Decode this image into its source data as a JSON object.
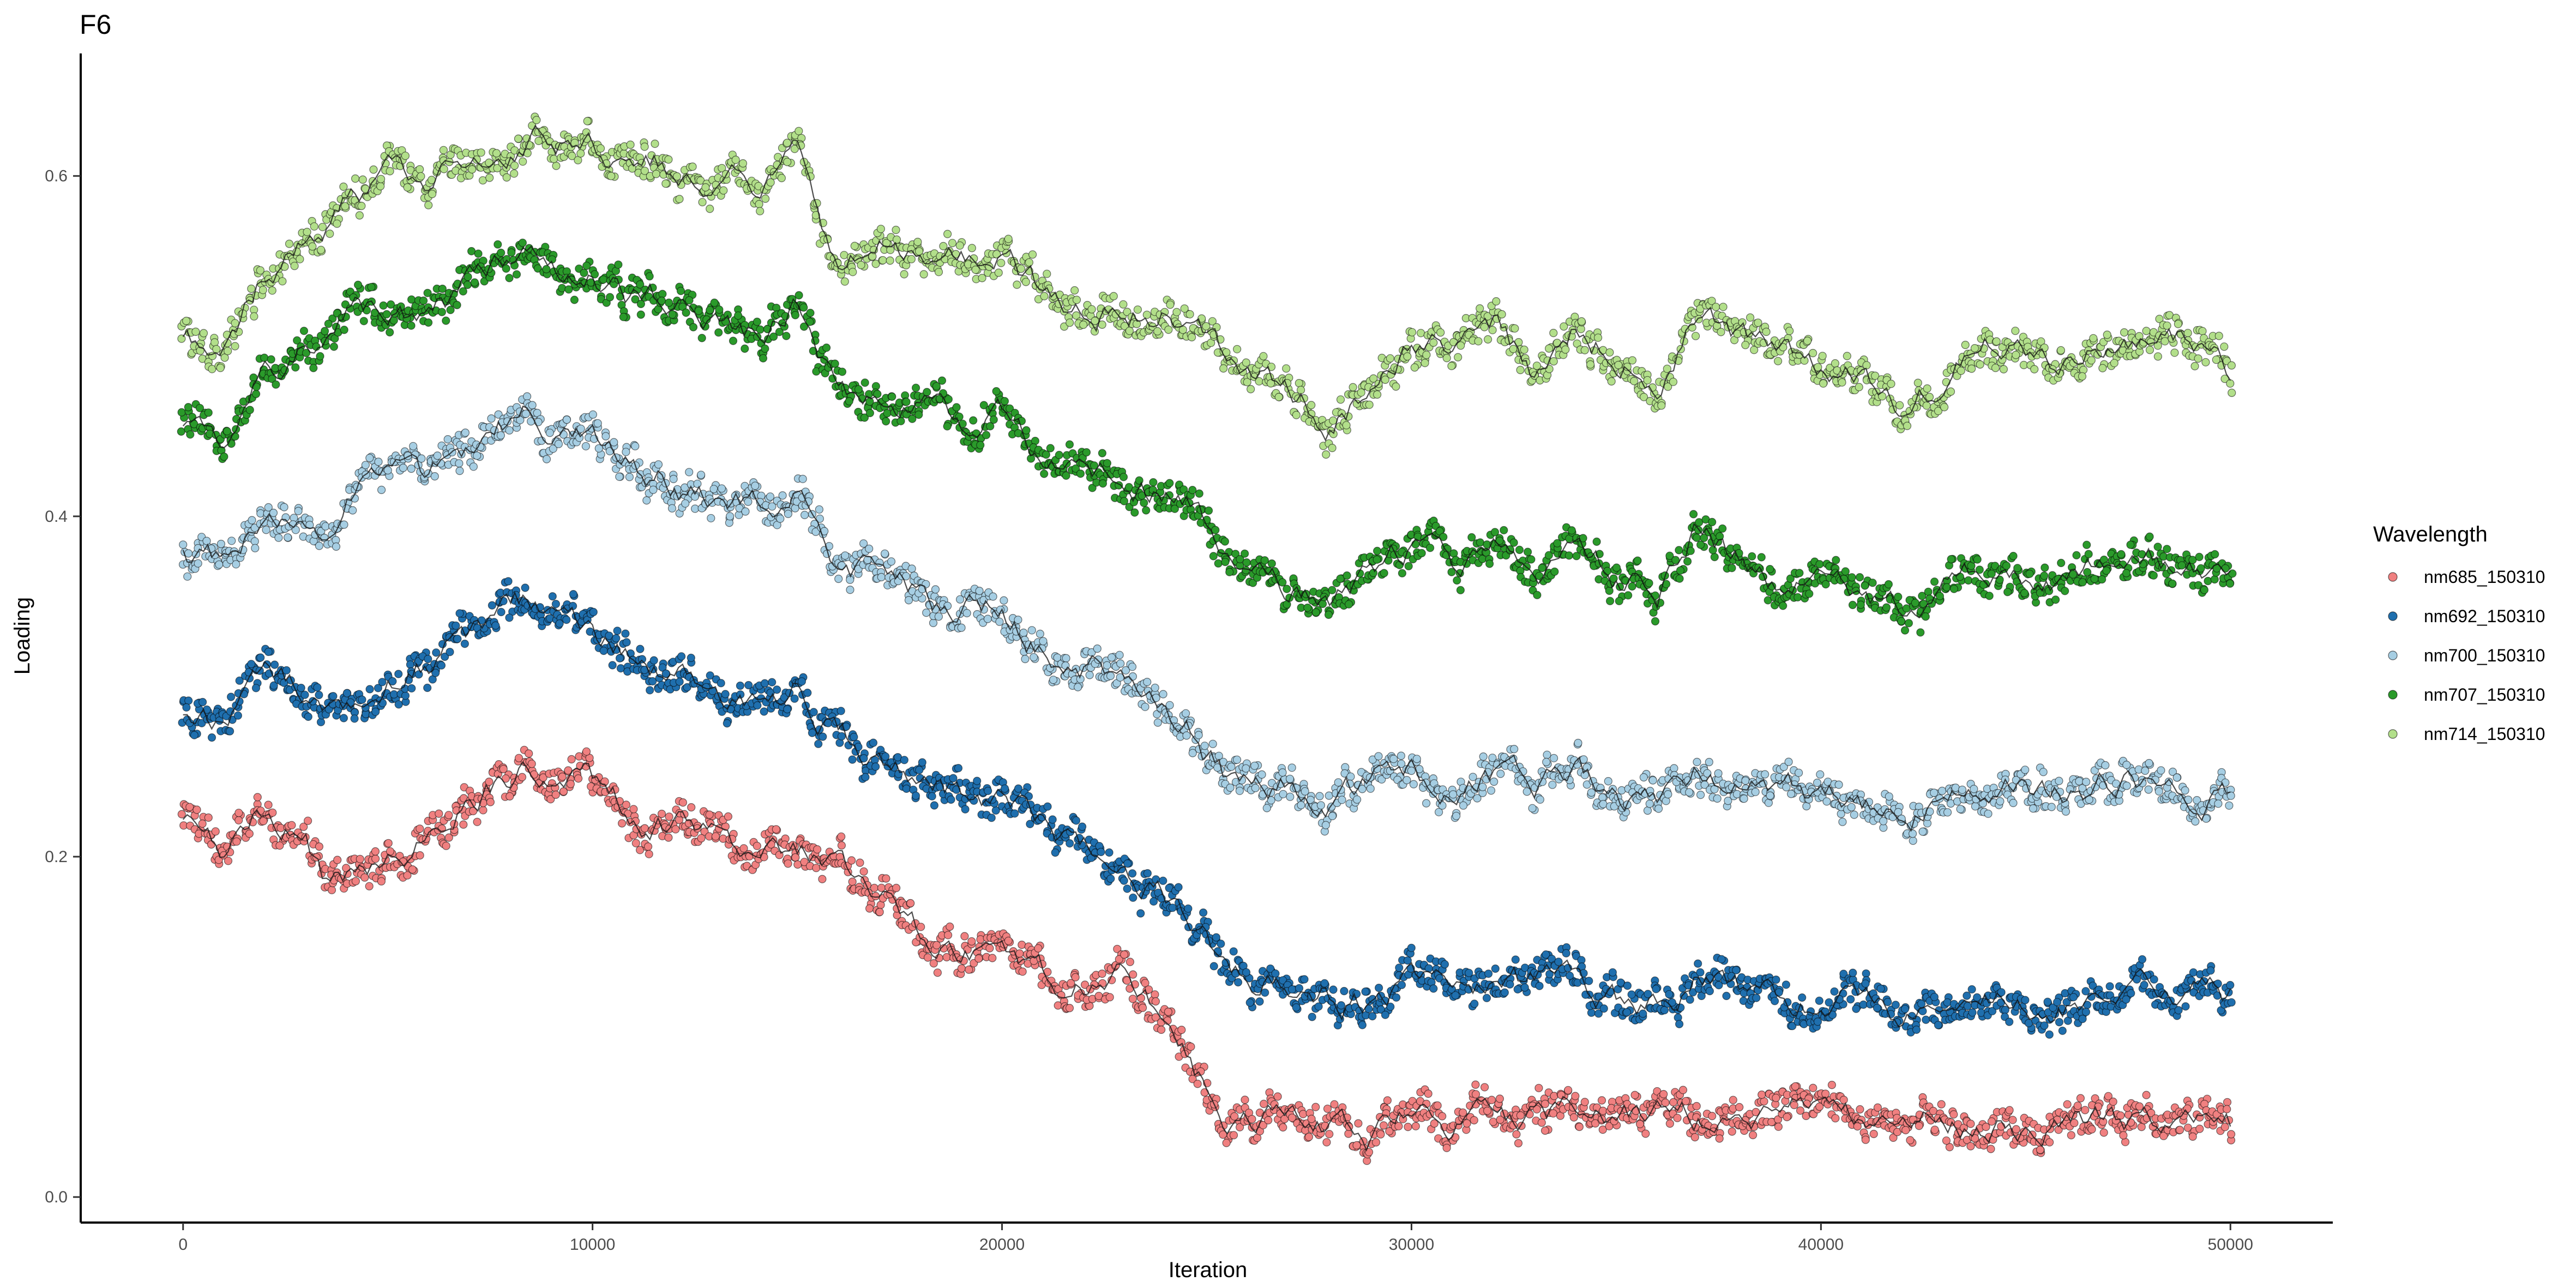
{
  "chart_data": {
    "type": "scatter",
    "title": "F6",
    "xlabel": "Iteration",
    "ylabel": "Loading",
    "xlim": [
      -2500,
      52500
    ],
    "ylim": [
      -0.015,
      0.672
    ],
    "x_ticks": [
      0,
      10000,
      20000,
      30000,
      40000,
      50000
    ],
    "x_tick_labels": [
      "0",
      "10000",
      "20000",
      "30000",
      "40000",
      "50000"
    ],
    "y_ticks": [
      0.0,
      0.2,
      0.4,
      0.6
    ],
    "y_tick_labels": [
      "0.0",
      "0.2",
      "0.4",
      "0.6"
    ],
    "grid": false,
    "legend": {
      "title": "Wavelength",
      "position": "right"
    },
    "point_outline": "#000000",
    "series": [
      {
        "name": "nm685_150310",
        "color": "#F08080",
        "x": [
          0,
          1000,
          2000,
          3000,
          3500,
          4000,
          5000,
          6000,
          7000,
          8000,
          8500,
          9000,
          10000,
          11000,
          12000,
          13000,
          14000,
          15000,
          16000,
          17000,
          18000,
          19000,
          20000,
          21000,
          22000,
          23000,
          24000,
          24500,
          25000,
          25500,
          26000,
          27000,
          28000,
          29000,
          30000,
          31000,
          32000,
          33000,
          34000,
          35000,
          36000,
          37000,
          38000,
          39000,
          40000,
          41000,
          42000,
          43000,
          44000,
          45000,
          46000,
          47000,
          48000,
          49000,
          50000
        ],
        "y": [
          0.22,
          0.205,
          0.225,
          0.21,
          0.185,
          0.19,
          0.205,
          0.215,
          0.235,
          0.25,
          0.255,
          0.24,
          0.24,
          0.225,
          0.22,
          0.21,
          0.2,
          0.205,
          0.19,
          0.175,
          0.155,
          0.145,
          0.14,
          0.13,
          0.125,
          0.135,
          0.1,
          0.09,
          0.065,
          0.05,
          0.045,
          0.05,
          0.045,
          0.035,
          0.045,
          0.04,
          0.045,
          0.045,
          0.05,
          0.04,
          0.045,
          0.045,
          0.04,
          0.04,
          0.05,
          0.045,
          0.035,
          0.045,
          0.04,
          0.04,
          0.045,
          0.045,
          0.04,
          0.045,
          0.04
        ]
      },
      {
        "name": "nm692_150310",
        "color": "#1F6FAE",
        "x": [
          0,
          1000,
          2000,
          3000,
          3500,
          4000,
          5000,
          6000,
          7000,
          8000,
          8500,
          9000,
          10000,
          11000,
          12000,
          13000,
          14000,
          15000,
          16000,
          17000,
          18000,
          19000,
          20000,
          21000,
          22000,
          23000,
          24000,
          24500,
          25000,
          25500,
          26000,
          27000,
          28000,
          29000,
          30000,
          31000,
          32000,
          33000,
          34000,
          35000,
          36000,
          37000,
          38000,
          39000,
          40000,
          41000,
          42000,
          43000,
          44000,
          45000,
          46000,
          47000,
          48000,
          49000,
          50000
        ],
        "y": [
          0.285,
          0.28,
          0.31,
          0.295,
          0.285,
          0.29,
          0.305,
          0.315,
          0.33,
          0.345,
          0.35,
          0.335,
          0.33,
          0.315,
          0.31,
          0.3,
          0.29,
          0.3,
          0.275,
          0.26,
          0.245,
          0.235,
          0.23,
          0.215,
          0.205,
          0.2,
          0.18,
          0.17,
          0.155,
          0.13,
          0.125,
          0.13,
          0.12,
          0.115,
          0.125,
          0.12,
          0.12,
          0.125,
          0.125,
          0.115,
          0.115,
          0.13,
          0.12,
          0.115,
          0.115,
          0.11,
          0.105,
          0.115,
          0.12,
          0.12,
          0.115,
          0.125,
          0.12,
          0.12,
          0.115
        ]
      },
      {
        "name": "nm700_150310",
        "color": "#A6CEE3",
        "x": [
          0,
          1000,
          2000,
          3000,
          3500,
          4000,
          5000,
          6000,
          7000,
          8000,
          8500,
          9000,
          10000,
          11000,
          12000,
          13000,
          14000,
          15000,
          16000,
          17000,
          18000,
          19000,
          20000,
          21000,
          22000,
          23000,
          24000,
          24500,
          25000,
          25500,
          26000,
          27000,
          28000,
          29000,
          30000,
          31000,
          32000,
          33000,
          34000,
          35000,
          36000,
          37000,
          38000,
          39000,
          40000,
          41000,
          42000,
          43000,
          44000,
          45000,
          46000,
          47000,
          48000,
          49000,
          50000
        ],
        "y": [
          0.375,
          0.37,
          0.405,
          0.4,
          0.395,
          0.41,
          0.425,
          0.42,
          0.44,
          0.455,
          0.46,
          0.445,
          0.44,
          0.425,
          0.42,
          0.41,
          0.405,
          0.415,
          0.37,
          0.36,
          0.35,
          0.345,
          0.345,
          0.325,
          0.315,
          0.305,
          0.29,
          0.28,
          0.26,
          0.245,
          0.24,
          0.245,
          0.235,
          0.24,
          0.25,
          0.245,
          0.25,
          0.24,
          0.25,
          0.235,
          0.23,
          0.255,
          0.245,
          0.235,
          0.235,
          0.23,
          0.215,
          0.235,
          0.245,
          0.24,
          0.24,
          0.245,
          0.245,
          0.24,
          0.235
        ]
      },
      {
        "name": "nm707_150310",
        "color": "#2A9A2A",
        "x": [
          0,
          1000,
          2000,
          3000,
          3500,
          4000,
          5000,
          6000,
          7000,
          8000,
          8500,
          9000,
          10000,
          11000,
          12000,
          13000,
          14000,
          15000,
          16000,
          17000,
          18000,
          19000,
          20000,
          21000,
          22000,
          23000,
          24000,
          24500,
          25000,
          25500,
          26000,
          27000,
          28000,
          29000,
          30000,
          31000,
          32000,
          33000,
          34000,
          35000,
          36000,
          37000,
          38000,
          39000,
          40000,
          41000,
          42000,
          43000,
          44000,
          45000,
          46000,
          47000,
          48000,
          49000,
          50000
        ],
        "y": [
          0.45,
          0.445,
          0.49,
          0.5,
          0.505,
          0.52,
          0.525,
          0.515,
          0.535,
          0.55,
          0.555,
          0.545,
          0.545,
          0.53,
          0.525,
          0.515,
          0.505,
          0.53,
          0.475,
          0.465,
          0.46,
          0.455,
          0.455,
          0.435,
          0.42,
          0.415,
          0.41,
          0.405,
          0.39,
          0.375,
          0.37,
          0.36,
          0.345,
          0.36,
          0.38,
          0.37,
          0.385,
          0.36,
          0.38,
          0.365,
          0.355,
          0.395,
          0.375,
          0.36,
          0.36,
          0.355,
          0.34,
          0.36,
          0.37,
          0.37,
          0.365,
          0.375,
          0.375,
          0.37,
          0.36
        ]
      },
      {
        "name": "nm714_150310",
        "color": "#B2DF8A",
        "x": [
          0,
          1000,
          2000,
          3000,
          3500,
          4000,
          5000,
          6000,
          7000,
          8000,
          8500,
          9000,
          10000,
          11000,
          12000,
          13000,
          14000,
          15000,
          16000,
          17000,
          18000,
          19000,
          20000,
          21000,
          22000,
          23000,
          24000,
          24500,
          25000,
          25500,
          26000,
          27000,
          28000,
          29000,
          30000,
          31000,
          32000,
          33000,
          34000,
          35000,
          36000,
          37000,
          38000,
          39000,
          40000,
          41000,
          42000,
          43000,
          44000,
          45000,
          46000,
          47000,
          48000,
          49000,
          50000
        ],
        "y": [
          0.505,
          0.5,
          0.545,
          0.565,
          0.575,
          0.585,
          0.6,
          0.59,
          0.61,
          0.62,
          0.625,
          0.62,
          0.615,
          0.61,
          0.605,
          0.6,
          0.595,
          0.615,
          0.55,
          0.56,
          0.555,
          0.55,
          0.55,
          0.53,
          0.525,
          0.52,
          0.52,
          0.515,
          0.505,
          0.49,
          0.49,
          0.475,
          0.455,
          0.475,
          0.5,
          0.495,
          0.51,
          0.48,
          0.51,
          0.5,
          0.48,
          0.52,
          0.5,
          0.49,
          0.49,
          0.485,
          0.465,
          0.485,
          0.5,
          0.495,
          0.49,
          0.505,
          0.5,
          0.5,
          0.485
        ]
      }
    ]
  }
}
